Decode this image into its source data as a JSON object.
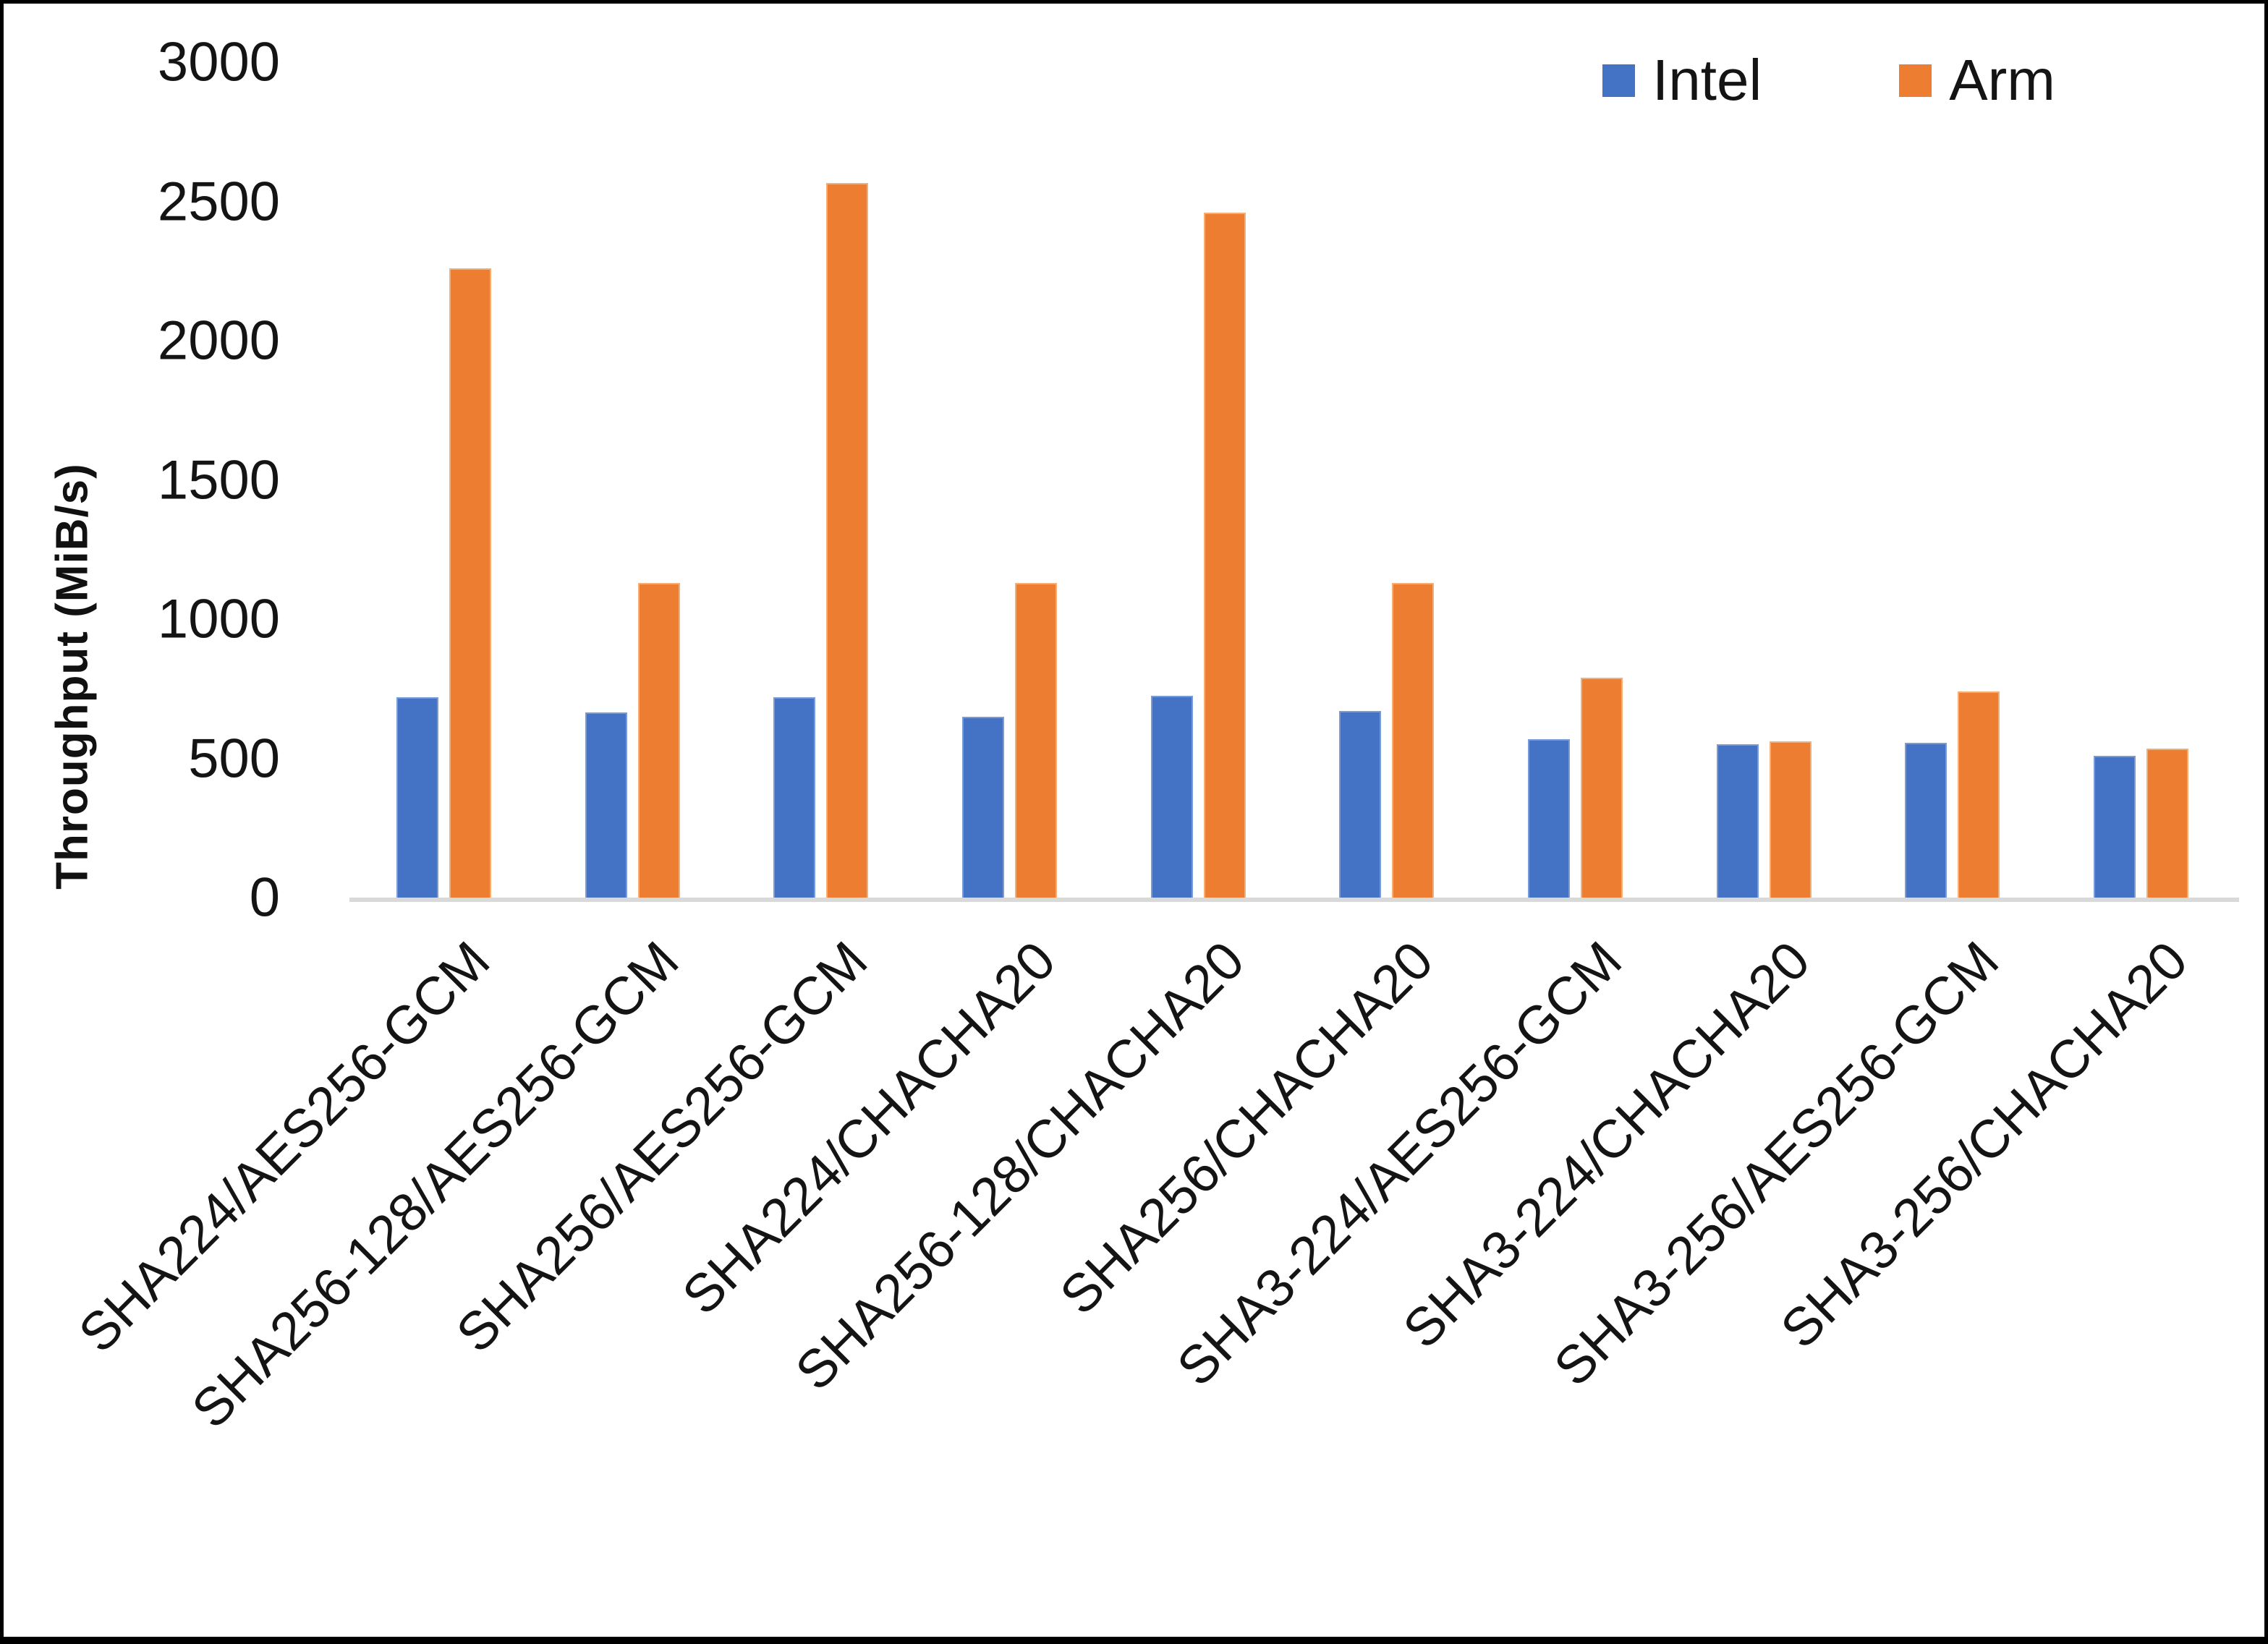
{
  "chart_data": {
    "type": "bar",
    "title": "",
    "xlabel": "",
    "ylabel": "Throughput (MiB/s)",
    "ylim": [
      0,
      3000
    ],
    "yticks": [
      0,
      500,
      1000,
      1500,
      2000,
      2500,
      3000
    ],
    "grid": false,
    "legend_position": "top-right",
    "categories": [
      "SHA224/AES256-GCM",
      "SHA256-128/AES256-GCM",
      "SHA256/AES256-GCM",
      "SHA224/CHACHA20",
      "SHA256-128/CHACHA20",
      "SHA256/CHACHA20",
      "SHA3-224/AES256-GCM",
      "SHA3-224/CHACHA20",
      "SHA3-256/AES256-GCM",
      "SHA3-256/CHACHA20"
    ],
    "series": [
      {
        "name": "Intel",
        "color": "#4472C4",
        "values": [
          720,
          665,
          720,
          650,
          725,
          670,
          570,
          550,
          555,
          510
        ]
      },
      {
        "name": "Arm",
        "color": "#ED7D31",
        "values": [
          2260,
          1130,
          2565,
          1130,
          2460,
          1130,
          790,
          560,
          740,
          535
        ]
      }
    ]
  },
  "colors": {
    "axis_line": "#D9D9D9",
    "text": "#141414",
    "frame_border": "#000000"
  }
}
